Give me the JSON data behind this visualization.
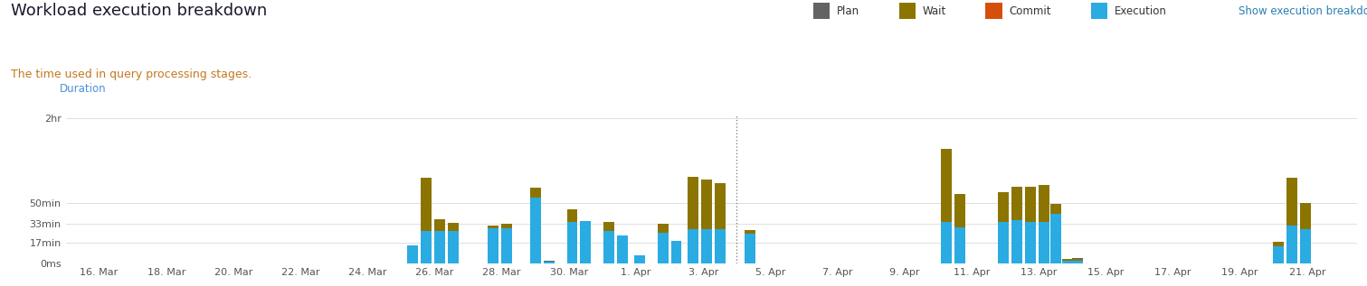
{
  "title": "Workload execution breakdown",
  "subtitle": "The time used in query processing stages.",
  "ylabel": "Duration",
  "colors": {
    "plan": "#636363",
    "wait": "#8B7500",
    "commit": "#D4500A",
    "execution": "#2AABE2"
  },
  "yticks": [
    0,
    1020,
    1980,
    3000,
    7200
  ],
  "ytick_labels": [
    "0ms",
    "17min",
    "33min",
    "50min",
    "2hr"
  ],
  "title_color": "#1A1A2E",
  "subtitle_color": "#C47820",
  "ylabel_color": "#4A90D9",
  "dotted_line_x": 35.0,
  "bars": [
    {
      "x": 25.35,
      "execution": 900,
      "wait": 0,
      "plan": 0,
      "commit": 0
    },
    {
      "x": 25.75,
      "execution": 1580,
      "wait": 2650,
      "plan": 0,
      "commit": 0
    },
    {
      "x": 26.15,
      "execution": 1600,
      "wait": 580,
      "plan": 0,
      "commit": 0
    },
    {
      "x": 26.55,
      "execution": 1580,
      "wait": 420,
      "plan": 0,
      "commit": 0
    },
    {
      "x": 27.75,
      "execution": 1720,
      "wait": 170,
      "plan": 0,
      "commit": 0
    },
    {
      "x": 28.15,
      "execution": 1720,
      "wait": 220,
      "plan": 0,
      "commit": 0
    },
    {
      "x": 29.0,
      "execution": 3250,
      "wait": 500,
      "plan": 0,
      "commit": 0
    },
    {
      "x": 29.4,
      "execution": 80,
      "wait": 0,
      "plan": 50,
      "commit": 0
    },
    {
      "x": 30.1,
      "execution": 2050,
      "wait": 620,
      "plan": 0,
      "commit": 0
    },
    {
      "x": 30.5,
      "execution": 2100,
      "wait": 0,
      "plan": 0,
      "commit": 0
    },
    {
      "x": 31.2,
      "execution": 1600,
      "wait": 450,
      "plan": 0,
      "commit": 0
    },
    {
      "x": 31.6,
      "execution": 1380,
      "wait": 0,
      "plan": 0,
      "commit": 0
    },
    {
      "x": 32.1,
      "execution": 380,
      "wait": 0,
      "plan": 0,
      "commit": 0
    },
    {
      "x": 32.8,
      "execution": 1520,
      "wait": 420,
      "plan": 0,
      "commit": 0
    },
    {
      "x": 33.2,
      "execution": 1100,
      "wait": 0,
      "plan": 0,
      "commit": 0
    },
    {
      "x": 33.7,
      "execution": 1700,
      "wait": 2600,
      "plan": 0,
      "commit": 0
    },
    {
      "x": 34.1,
      "execution": 1700,
      "wait": 2450,
      "plan": 0,
      "commit": 0
    },
    {
      "x": 34.5,
      "execution": 1700,
      "wait": 2300,
      "plan": 0,
      "commit": 0
    },
    {
      "x": 35.4,
      "execution": 1450,
      "wait": 180,
      "plan": 0,
      "commit": 0
    },
    {
      "x": 41.25,
      "execution": 2050,
      "wait": 3650,
      "plan": 0,
      "commit": 0
    },
    {
      "x": 41.65,
      "execution": 1780,
      "wait": 1650,
      "plan": 0,
      "commit": 0
    },
    {
      "x": 42.95,
      "execution": 2050,
      "wait": 1500,
      "plan": 0,
      "commit": 0
    },
    {
      "x": 43.35,
      "execution": 2150,
      "wait": 1650,
      "plan": 0,
      "commit": 0
    },
    {
      "x": 43.75,
      "execution": 2050,
      "wait": 1750,
      "plan": 0,
      "commit": 0
    },
    {
      "x": 44.15,
      "execution": 2050,
      "wait": 1850,
      "plan": 0,
      "commit": 0
    },
    {
      "x": 44.5,
      "execution": 2450,
      "wait": 480,
      "plan": 0,
      "commit": 0
    },
    {
      "x": 44.85,
      "execution": 100,
      "wait": 120,
      "plan": 0,
      "commit": 0
    },
    {
      "x": 45.15,
      "execution": 100,
      "wait": 120,
      "plan": 50,
      "commit": 0
    },
    {
      "x": 51.15,
      "execution": 850,
      "wait": 200,
      "plan": 0,
      "commit": 0
    },
    {
      "x": 51.55,
      "execution": 1850,
      "wait": 2400,
      "plan": 0,
      "commit": 0
    },
    {
      "x": 51.95,
      "execution": 1700,
      "wait": 1300,
      "plan": 0,
      "commit": 0
    }
  ],
  "xaxis": {
    "start": 15.0,
    "end": 53.5,
    "ticks": [
      16,
      18,
      20,
      22,
      24,
      26,
      28,
      30,
      32,
      34,
      36,
      38,
      40,
      42,
      44,
      46,
      48,
      50,
      52
    ],
    "tick_labels": [
      "16. Mar",
      "18. Mar",
      "20. Mar",
      "22. Mar",
      "24. Mar",
      "26. Mar",
      "28. Mar",
      "30. Mar",
      "1. Apr",
      "3. Apr",
      "5. Apr",
      "7. Apr",
      "9. Apr",
      "11. Apr",
      "13. Apr",
      "15. Apr",
      "17. Apr",
      "19. Apr",
      "21. Apr"
    ]
  },
  "bar_width": 0.32,
  "background_color": "#ffffff",
  "grid_color": "#e0e0e0",
  "legend_labels": [
    "Plan",
    "Wait",
    "Commit",
    "Execution",
    "Show execution breakdown"
  ],
  "legend_link_color": "#2A7DB5"
}
